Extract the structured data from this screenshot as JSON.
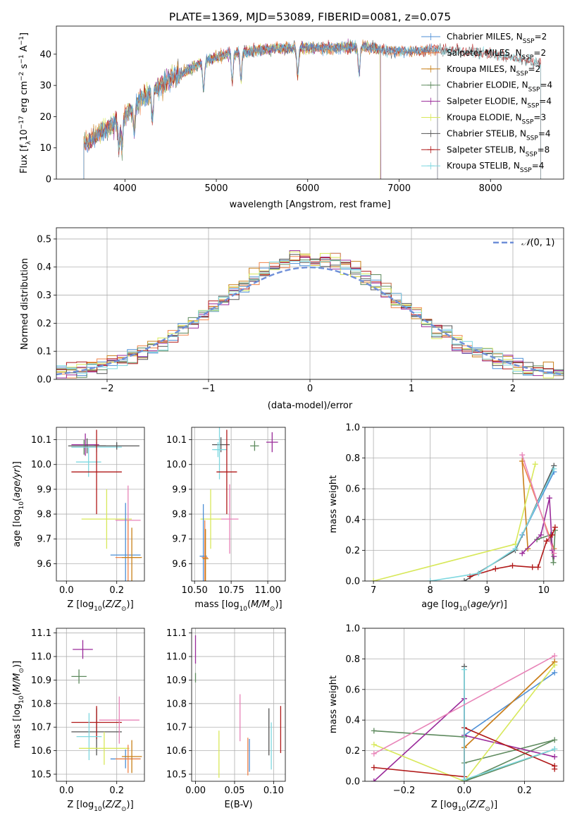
{
  "colors": [
    "#4d8fd6",
    "#f0834a",
    "#c8801a",
    "#5e8a5e",
    "#9a2a9a",
    "#d8e85a",
    "#555555",
    "#b01818",
    "#7fd8e0",
    "#e884b8",
    "#6f8fd8"
  ],
  "chart_data": [
    {
      "id": "spectrum",
      "type": "line",
      "title": "PLATE=1369, MJD=53089, FIBERID=0081, z=0.075",
      "xlabel": "wavelength [Angstrom, rest frame]",
      "ylabel": "Flux [fλ10⁻¹⁷ erg cm⁻² s⁻¹ A⁻¹]",
      "xlim": [
        3250,
        8800
      ],
      "ylim": [
        0,
        49
      ],
      "xticks": [
        4000,
        5000,
        6000,
        7000,
        8000
      ],
      "yticks": [
        0,
        10,
        20,
        30,
        40
      ],
      "grid": false,
      "legend_position": "top-right",
      "continuum": [
        [
          3550,
          11
        ],
        [
          3700,
          14
        ],
        [
          3850,
          17
        ],
        [
          3950,
          19
        ],
        [
          4050,
          22
        ],
        [
          4150,
          25
        ],
        [
          4300,
          28
        ],
        [
          4500,
          32
        ],
        [
          4700,
          35
        ],
        [
          4900,
          38
        ],
        [
          5100,
          40
        ],
        [
          5400,
          41
        ],
        [
          5700,
          42
        ],
        [
          6000,
          42
        ],
        [
          6300,
          42
        ],
        [
          6600,
          42.5
        ],
        [
          6900,
          41
        ],
        [
          7200,
          41
        ],
        [
          7400,
          41.5
        ],
        [
          7700,
          41
        ],
        [
          8100,
          40
        ],
        [
          8500,
          37
        ]
      ],
      "series": [
        {
          "name": "Chabrier MILES, N_SSP=2",
          "range": [
            3550,
            7420
          ],
          "marker": "+"
        },
        {
          "name": "Salpeter MILES, N_SSP=2",
          "range": [
            3550,
            7420
          ],
          "marker": "+"
        },
        {
          "name": "Kroupa MILES, N_SSP=2",
          "range": [
            3550,
            7420
          ],
          "marker": "+"
        },
        {
          "name": "Chabrier ELODIE, N_SSP=4",
          "range": [
            3550,
            6800
          ],
          "marker": "+"
        },
        {
          "name": "Salpeter ELODIE, N_SSP=4",
          "range": [
            3550,
            6800
          ],
          "marker": "+"
        },
        {
          "name": "Kroupa ELODIE, N_SSP=3",
          "range": [
            3550,
            6790
          ],
          "marker": "+"
        },
        {
          "name": "Chabrier STELIB, N_SSP=4",
          "range": [
            3550,
            8550
          ],
          "marker": "+"
        },
        {
          "name": "Salpeter STELIB, N_SSP=8",
          "range": [
            3550,
            8550
          ],
          "marker": "+"
        },
        {
          "name": "Kroupa STELIB, N_SSP=4",
          "range": [
            3550,
            8550
          ],
          "marker": "+"
        }
      ]
    },
    {
      "id": "residuals",
      "type": "line",
      "xlabel": "(data-model)/error",
      "ylabel": "Normed distribution",
      "xlim": [
        -2.5,
        2.5
      ],
      "ylim": [
        0,
        0.54
      ],
      "xticks": [
        -2,
        -1,
        0,
        1,
        2
      ],
      "yticks": [
        0.0,
        0.1,
        0.2,
        0.3,
        0.4,
        0.5
      ],
      "grid": true,
      "legend_position": "top-right",
      "reference": {
        "name": "N(0,1)",
        "mean": 0,
        "sigma": 1,
        "style": "dashed"
      },
      "bin_width": 0.1,
      "series_count": 9
    },
    {
      "id": "age-vs-Z",
      "type": "scatter",
      "xlabel": "Z [log10(Z/Z⊙)]",
      "ylabel": "age [log10(age/yr)]",
      "xlim": [
        -0.04,
        0.31
      ],
      "ylim": [
        9.53,
        10.15
      ],
      "xticks": [
        0.0,
        0.2
      ],
      "yticks": [
        9.6,
        9.7,
        9.8,
        9.9,
        10.0,
        10.1
      ],
      "grid": true,
      "points": [
        {
          "x": 0.075,
          "y": 10.08,
          "xerr": 0.055,
          "yerr": 0.045,
          "color": "#9a2a9a"
        },
        {
          "x": 0.082,
          "y": 10.075,
          "xerr": 0.075,
          "yerr": 0.03,
          "color": "#555555"
        },
        {
          "x": 0.07,
          "y": 10.07,
          "xerr": 0.05,
          "yerr": 0.03,
          "color": "#5e8a5e"
        },
        {
          "x": 0.088,
          "y": 10.01,
          "xerr": 0.05,
          "yerr": 0.06,
          "color": "#7fd8e0"
        },
        {
          "x": 0.12,
          "y": 10.07,
          "xerr": 0.1,
          "yerr": 0.02,
          "color": "#7fd8e0"
        },
        {
          "x": 0.2,
          "y": 10.075,
          "xerr": 0.09,
          "yerr": 0.015,
          "color": "#555555"
        },
        {
          "x": 0.12,
          "y": 9.97,
          "xerr": 0.1,
          "yerr": 0.17,
          "color": "#b01818"
        },
        {
          "x": 0.16,
          "y": 9.78,
          "xerr": 0.1,
          "yerr": 0.12,
          "color": "#d8e85a"
        },
        {
          "x": 0.245,
          "y": 9.775,
          "xerr": 0.05,
          "yerr": 0.14,
          "color": "#e884b8"
        },
        {
          "x": 0.235,
          "y": 9.635,
          "xerr": 0.06,
          "yerr": 0.21,
          "color": "#4d8fd6"
        },
        {
          "x": 0.245,
          "y": 9.625,
          "xerr": 0.05,
          "yerr": 0.15,
          "color": "#f0834a"
        },
        {
          "x": 0.26,
          "y": 9.625,
          "xerr": 0.04,
          "yerr": 0.12,
          "color": "#c8801a"
        }
      ]
    },
    {
      "id": "age-vs-mass",
      "type": "scatter",
      "xlabel": "mass [log10(M/M⊙)]",
      "ylabel": "",
      "xlim": [
        10.48,
        11.12
      ],
      "ylim": [
        9.53,
        10.15
      ],
      "xticks": [
        10.5,
        10.75,
        11.0
      ],
      "yticks": [
        9.6,
        9.7,
        9.8,
        9.9,
        10.0,
        10.1
      ],
      "grid": true,
      "points": [
        {
          "x": 11.03,
          "y": 10.09,
          "xerr": 0.04,
          "yerr": 0.04,
          "color": "#9a2a9a"
        },
        {
          "x": 10.91,
          "y": 10.075,
          "xerr": 0.03,
          "yerr": 0.02,
          "color": "#5e8a5e"
        },
        {
          "x": 10.68,
          "y": 10.08,
          "xerr": 0.06,
          "yerr": 0.03,
          "color": "#555555"
        },
        {
          "x": 10.67,
          "y": 10.06,
          "xerr": 0.05,
          "yerr": 0.12,
          "color": "#7fd8e0"
        },
        {
          "x": 10.72,
          "y": 9.97,
          "xerr": 0.07,
          "yerr": 0.17,
          "color": "#b01818"
        },
        {
          "x": 10.74,
          "y": 9.78,
          "xerr": 0.06,
          "yerr": 0.14,
          "color": "#e884b8"
        },
        {
          "x": 10.61,
          "y": 9.78,
          "xerr": 0.07,
          "yerr": 0.12,
          "color": "#d8e85a"
        },
        {
          "x": 10.56,
          "y": 9.63,
          "xerr": 0.025,
          "yerr": 0.21,
          "color": "#4d8fd6"
        },
        {
          "x": 10.57,
          "y": 9.625,
          "xerr": 0.02,
          "yerr": 0.15,
          "color": "#f0834a"
        },
        {
          "x": 10.575,
          "y": 9.62,
          "xerr": 0.02,
          "yerr": 0.12,
          "color": "#c8801a"
        },
        {
          "x": 10.66,
          "y": 10.06,
          "xerr": 0.03,
          "yerr": 0.03,
          "color": "#7fd8e0"
        }
      ]
    },
    {
      "id": "weight-vs-age",
      "type": "line",
      "xlabel": "age [log10(age/yr)]",
      "ylabel": "mass weight",
      "xlim": [
        6.85,
        10.35
      ],
      "ylim": [
        0,
        1.0
      ],
      "xticks": [
        7,
        8,
        9,
        10
      ],
      "yticks": [
        0.0,
        0.2,
        0.4,
        0.6,
        0.8,
        1.0
      ],
      "grid": true,
      "series": [
        {
          "color": "#4d8fd6",
          "x": [
            9.62,
            10.18
          ],
          "y": [
            0.3,
            0.71
          ]
        },
        {
          "color": "#f0834a",
          "x": [
            9.62,
            10.18
          ],
          "y": [
            0.78,
            0.21
          ]
        },
        {
          "color": "#c8801a",
          "x": [
            9.62,
            9.72
          ],
          "y": [
            0.78,
            0.21
          ]
        },
        {
          "color": "#5e8a5e",
          "x": [
            9.88,
            10.12,
            10.17,
            10.2
          ],
          "y": [
            0.27,
            0.3,
            0.12,
            0.33
          ]
        },
        {
          "color": "#9a2a9a",
          "x": [
            9.62,
            9.95,
            10.1,
            10.15,
            10.18
          ],
          "y": [
            0.18,
            0.3,
            0.54,
            0.2,
            0.16
          ]
        },
        {
          "color": "#d8e85a",
          "x": [
            7.0,
            9.5,
            9.85
          ],
          "y": [
            0.0,
            0.24,
            0.76
          ]
        },
        {
          "color": "#555555",
          "x": [
            8.6,
            9.5,
            10.18
          ],
          "y": [
            0.0,
            0.2,
            0.75
          ]
        },
        {
          "color": "#b01818",
          "x": [
            8.7,
            9.15,
            9.45,
            9.8,
            9.9,
            10.05,
            10.15,
            10.2
          ],
          "y": [
            0.03,
            0.08,
            0.1,
            0.09,
            0.09,
            0.26,
            0.3,
            0.35
          ]
        },
        {
          "color": "#7fd8e0",
          "x": [
            8.0,
            8.85,
            9.5,
            10.18
          ],
          "y": [
            0.0,
            0.05,
            0.21,
            0.73
          ]
        },
        {
          "color": "#e884b8",
          "x": [
            9.62,
            10.18
          ],
          "y": [
            0.82,
            0.18
          ]
        }
      ]
    },
    {
      "id": "mass-vs-Z",
      "type": "scatter",
      "xlabel": "Z [log10(Z/Z⊙)]",
      "ylabel": "mass [log10(M/M⊙)]",
      "xlim": [
        -0.04,
        0.31
      ],
      "ylim": [
        10.47,
        11.12
      ],
      "xticks": [
        0.0,
        0.2
      ],
      "yticks": [
        10.5,
        10.6,
        10.7,
        10.8,
        10.9,
        11.0,
        11.1
      ],
      "grid": true,
      "points": [
        {
          "x": 0.065,
          "y": 11.03,
          "xerr": 0.04,
          "yerr": 0.04,
          "color": "#9a2a9a"
        },
        {
          "x": 0.05,
          "y": 10.915,
          "xerr": 0.03,
          "yerr": 0.03,
          "color": "#5e8a5e"
        },
        {
          "x": 0.12,
          "y": 10.68,
          "xerr": 0.1,
          "yerr": 0.1,
          "color": "#555555"
        },
        {
          "x": 0.12,
          "y": 10.72,
          "xerr": 0.1,
          "yerr": 0.07,
          "color": "#b01818"
        },
        {
          "x": 0.21,
          "y": 10.73,
          "xerr": 0.08,
          "yerr": 0.1,
          "color": "#e884b8"
        },
        {
          "x": 0.09,
          "y": 10.66,
          "xerr": 0.05,
          "yerr": 0.1,
          "color": "#7fd8e0"
        },
        {
          "x": 0.15,
          "y": 10.61,
          "xerr": 0.1,
          "yerr": 0.07,
          "color": "#d8e85a"
        },
        {
          "x": 0.235,
          "y": 10.565,
          "xerr": 0.06,
          "yerr": 0.04,
          "color": "#4d8fd6"
        },
        {
          "x": 0.245,
          "y": 10.565,
          "xerr": 0.05,
          "yerr": 0.06,
          "color": "#f0834a"
        },
        {
          "x": 0.26,
          "y": 10.575,
          "xerr": 0.04,
          "yerr": 0.07,
          "color": "#c8801a"
        }
      ]
    },
    {
      "id": "mass-vs-ebv",
      "type": "scatter",
      "xlabel": "E(B-V)",
      "ylabel": "",
      "xlim": [
        -0.005,
        0.115
      ],
      "ylim": [
        10.47,
        11.12
      ],
      "xticks": [
        0.0,
        0.05,
        0.1
      ],
      "yticks": [
        10.5,
        10.6,
        10.7,
        10.8,
        10.9,
        11.0,
        11.1
      ],
      "grid": true,
      "points": [
        {
          "x": 0.0,
          "y": 11.03,
          "xerr": 0,
          "yerr": 0.06,
          "color": "#9a2a9a"
        },
        {
          "x": 0.0,
          "y": 10.91,
          "xerr": 0,
          "yerr": 0.02,
          "color": "#5e8a5e"
        },
        {
          "x": 0.057,
          "y": 10.74,
          "xerr": 0,
          "yerr": 0.1,
          "color": "#e884b8"
        },
        {
          "x": 0.03,
          "y": 10.585,
          "xerr": 0,
          "yerr": 0.1,
          "color": "#d8e85a"
        },
        {
          "x": 0.067,
          "y": 10.575,
          "xerr": 0,
          "yerr": 0.08,
          "color": "#f0834a"
        },
        {
          "x": 0.069,
          "y": 10.58,
          "xerr": 0,
          "yerr": 0.07,
          "color": "#4d8fd6"
        },
        {
          "x": 0.094,
          "y": 10.68,
          "xerr": 0,
          "yerr": 0.1,
          "color": "#555555"
        },
        {
          "x": 0.097,
          "y": 10.62,
          "xerr": 0,
          "yerr": 0.1,
          "color": "#7fd8e0"
        },
        {
          "x": 0.109,
          "y": 10.69,
          "xerr": 0,
          "yerr": 0.1,
          "color": "#b01818"
        }
      ]
    },
    {
      "id": "weight-vs-Z",
      "type": "line",
      "xlabel": "Z [log10(Z/Z⊙)]",
      "ylabel": "mass weight",
      "xlim": [
        -0.33,
        0.33
      ],
      "ylim": [
        0,
        1.0
      ],
      "xticks": [
        -0.2,
        0.0,
        0.2
      ],
      "yticks": [
        0.0,
        0.2,
        0.4,
        0.6,
        0.8,
        1.0
      ],
      "grid": true,
      "series": [
        {
          "color": "#4d8fd6",
          "x": [
            0.0,
            0.0,
            0.3
          ],
          "y": [
            0.0,
            0.3,
            0.71
          ]
        },
        {
          "color": "#f0834a",
          "x": [
            0.0,
            0.0,
            0.3
          ],
          "y": [
            0.0,
            0.22,
            0.78
          ]
        },
        {
          "color": "#c8801a",
          "x": [
            0.0,
            0.3
          ],
          "y": [
            0.22,
            0.78
          ]
        },
        {
          "color": "#5e8a5e",
          "x": [
            -0.3,
            0.0,
            0.0,
            0.3,
            0.0,
            0.3
          ],
          "y": [
            0.33,
            0.29,
            0.12,
            0.27,
            0.0,
            0.21
          ]
        },
        {
          "color": "#9a2a9a",
          "x": [
            -0.3,
            0.0,
            0.0,
            0.3
          ],
          "y": [
            0.0,
            0.54,
            0.3,
            0.16
          ]
        },
        {
          "color": "#d8e85a",
          "x": [
            -0.3,
            0.0,
            0.3
          ],
          "y": [
            0.24,
            0.0,
            0.76
          ]
        },
        {
          "color": "#555555",
          "x": [
            0.0,
            0.0
          ],
          "y": [
            0.0,
            0.75
          ]
        },
        {
          "color": "#b01818",
          "x": [
            -0.3,
            0.0,
            0.0,
            0.3,
            0.3
          ],
          "y": [
            0.09,
            0.03,
            0.35,
            0.1,
            0.08
          ]
        },
        {
          "color": "#7fd8e0",
          "x": [
            0.0,
            0.0,
            0.3
          ],
          "y": [
            0.73,
            0.01,
            0.21
          ]
        },
        {
          "color": "#e884b8",
          "x": [
            -0.3,
            0.3
          ],
          "y": [
            0.18,
            0.82
          ]
        }
      ]
    }
  ]
}
